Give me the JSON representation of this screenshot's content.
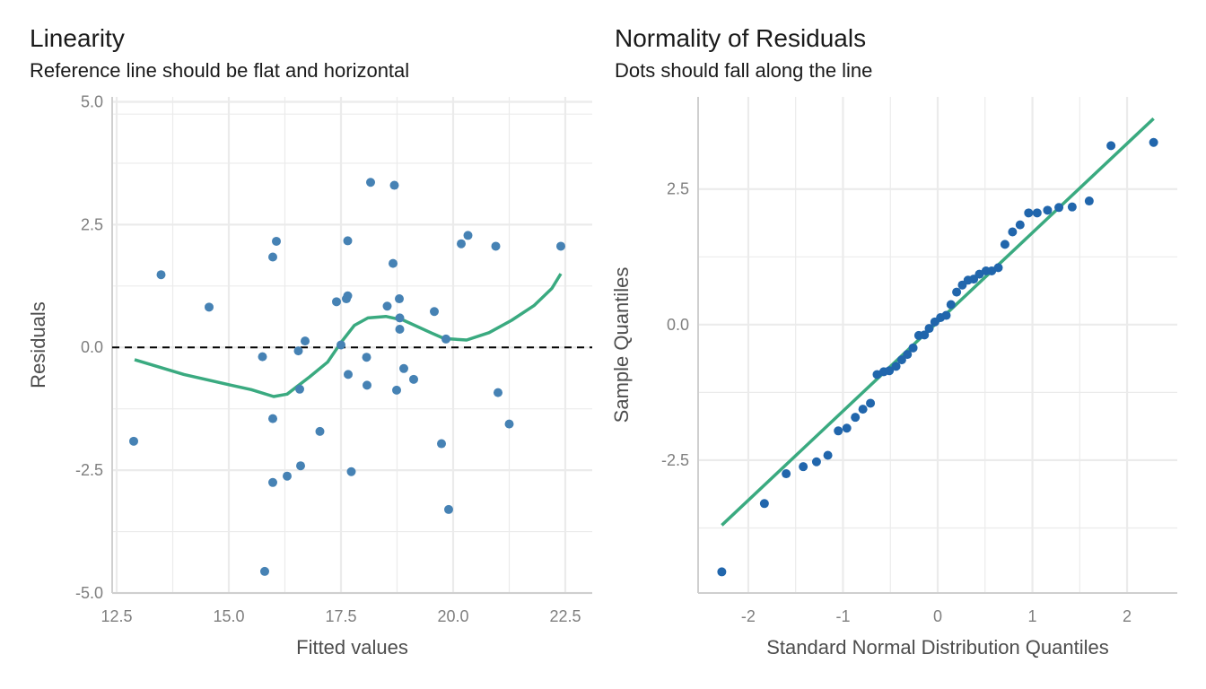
{
  "colors": {
    "points_left": "#4682b4",
    "points_right": "#2166ac",
    "line": "#3aaa80",
    "grid": "#ebebeb",
    "axis": "#cfcfcf",
    "reference": "#000000"
  },
  "chart_data": [
    {
      "type": "scatter",
      "title": "Linearity",
      "subtitle": "Reference line should be flat and horizontal",
      "xlabel": "Fitted values",
      "ylabel": "Residuals",
      "xlim": [
        12.4,
        23.1
      ],
      "ylim": [
        -5.0,
        5.1
      ],
      "xticks": [
        12.5,
        15.0,
        17.5,
        20.0,
        22.5
      ],
      "xtick_labels": [
        "12.5",
        "15.0",
        "17.5",
        "20.0",
        "22.5"
      ],
      "yticks": [
        5.0,
        2.5,
        0.0,
        -2.5,
        -5.0
      ],
      "ytick_labels": [
        "5.0",
        "2.5",
        "0.0",
        "-2.5",
        "-5.0"
      ],
      "grid": true,
      "reference_line": 0,
      "points": [
        [
          12.88,
          -1.91
        ],
        [
          13.49,
          1.48
        ],
        [
          14.56,
          0.82
        ],
        [
          15.75,
          -0.19
        ],
        [
          15.8,
          -4.56
        ],
        [
          15.98,
          -1.45
        ],
        [
          15.98,
          1.84
        ],
        [
          15.98,
          -2.75
        ],
        [
          16.06,
          2.16
        ],
        [
          16.3,
          -2.62
        ],
        [
          16.55,
          -0.07
        ],
        [
          16.58,
          -0.85
        ],
        [
          16.6,
          -2.41
        ],
        [
          16.7,
          0.13
        ],
        [
          17.03,
          -1.71
        ],
        [
          17.4,
          0.93
        ],
        [
          17.5,
          0.05
        ],
        [
          17.62,
          0.99
        ],
        [
          17.65,
          1.05
        ],
        [
          17.65,
          2.17
        ],
        [
          17.66,
          -0.55
        ],
        [
          17.73,
          -2.53
        ],
        [
          18.07,
          -0.2
        ],
        [
          18.08,
          -0.77
        ],
        [
          18.16,
          3.36
        ],
        [
          18.53,
          0.84
        ],
        [
          18.66,
          1.71
        ],
        [
          18.69,
          3.3
        ],
        [
          18.74,
          -0.87
        ],
        [
          18.8,
          0.99
        ],
        [
          18.81,
          0.6
        ],
        [
          18.81,
          0.37
        ],
        [
          18.9,
          -0.43
        ],
        [
          19.12,
          -0.65
        ],
        [
          19.58,
          0.73
        ],
        [
          19.74,
          -1.96
        ],
        [
          19.84,
          0.17
        ],
        [
          19.9,
          -3.3
        ],
        [
          20.18,
          2.11
        ],
        [
          20.33,
          2.28
        ],
        [
          20.95,
          2.06
        ],
        [
          21.0,
          -0.92
        ],
        [
          21.25,
          -1.56
        ],
        [
          22.4,
          2.06
        ]
      ],
      "smooth": [
        [
          12.9,
          -0.25
        ],
        [
          14.0,
          -0.55
        ],
        [
          15.0,
          -0.76
        ],
        [
          15.5,
          -0.86
        ],
        [
          16.0,
          -1.0
        ],
        [
          16.3,
          -0.95
        ],
        [
          16.8,
          -0.6
        ],
        [
          17.2,
          -0.3
        ],
        [
          17.5,
          0.1
        ],
        [
          17.8,
          0.45
        ],
        [
          18.1,
          0.6
        ],
        [
          18.5,
          0.63
        ],
        [
          18.9,
          0.55
        ],
        [
          19.5,
          0.3
        ],
        [
          19.8,
          0.18
        ],
        [
          20.3,
          0.15
        ],
        [
          20.8,
          0.3
        ],
        [
          21.3,
          0.55
        ],
        [
          21.8,
          0.85
        ],
        [
          22.2,
          1.2
        ],
        [
          22.4,
          1.5
        ]
      ]
    },
    {
      "type": "scatter",
      "title": "Normality of Residuals",
      "subtitle": "Dots should fall along the line",
      "xlabel": "Standard Normal Distribution Quantiles",
      "ylabel": "Sample Quantiles",
      "xlim": [
        -2.53,
        2.53
      ],
      "ylim": [
        -4.95,
        4.2
      ],
      "xticks": [
        -2,
        -1,
        0,
        1,
        2
      ],
      "xtick_labels": [
        "-2",
        "-1",
        "0",
        "1",
        "2"
      ],
      "yticks": [
        2.5,
        0.0,
        -2.5
      ],
      "ytick_labels": [
        "2.5",
        "0.0",
        "-2.5"
      ],
      "grid": true,
      "reference_line": [
        [
          -2.28,
          -3.7
        ],
        [
          2.28,
          3.8
        ]
      ],
      "points": [
        [
          -2.28,
          -4.56
        ],
        [
          -1.83,
          -3.3
        ],
        [
          -1.6,
          -2.75
        ],
        [
          -1.42,
          -2.62
        ],
        [
          -1.28,
          -2.53
        ],
        [
          -1.16,
          -2.41
        ],
        [
          -1.05,
          -1.96
        ],
        [
          -0.96,
          -1.91
        ],
        [
          -0.87,
          -1.71
        ],
        [
          -0.79,
          -1.56
        ],
        [
          -0.71,
          -1.45
        ],
        [
          -0.64,
          -0.92
        ],
        [
          -0.57,
          -0.87
        ],
        [
          -0.51,
          -0.85
        ],
        [
          -0.44,
          -0.77
        ],
        [
          -0.38,
          -0.65
        ],
        [
          -0.32,
          -0.55
        ],
        [
          -0.26,
          -0.43
        ],
        [
          -0.2,
          -0.2
        ],
        [
          -0.14,
          -0.19
        ],
        [
          -0.09,
          -0.07
        ],
        [
          -0.03,
          0.05
        ],
        [
          0.03,
          0.13
        ],
        [
          0.09,
          0.17
        ],
        [
          0.14,
          0.37
        ],
        [
          0.2,
          0.6
        ],
        [
          0.26,
          0.73
        ],
        [
          0.32,
          0.82
        ],
        [
          0.38,
          0.84
        ],
        [
          0.44,
          0.93
        ],
        [
          0.51,
          0.99
        ],
        [
          0.57,
          0.99
        ],
        [
          0.64,
          1.05
        ],
        [
          0.71,
          1.48
        ],
        [
          0.79,
          1.71
        ],
        [
          0.87,
          1.84
        ],
        [
          0.96,
          2.06
        ],
        [
          1.05,
          2.06
        ],
        [
          1.16,
          2.11
        ],
        [
          1.28,
          2.16
        ],
        [
          1.42,
          2.17
        ],
        [
          1.6,
          2.28
        ],
        [
          1.83,
          3.3
        ],
        [
          2.28,
          3.36
        ]
      ]
    }
  ]
}
